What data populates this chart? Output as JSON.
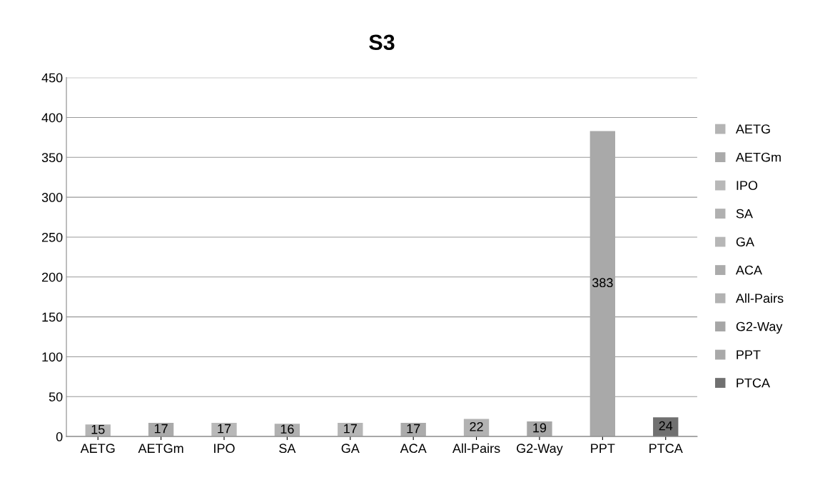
{
  "chart_data": {
    "type": "bar",
    "title": "S3",
    "categories": [
      "AETG",
      "AETGm",
      "IPO",
      "SA",
      "GA",
      "ACA",
      "All-Pairs",
      "G2-Way",
      "PPT",
      "PTCA"
    ],
    "series": [
      {
        "name": "AETG",
        "color": "#b4b4b4",
        "values": [
          15,
          null,
          null,
          null,
          null,
          null,
          null,
          null,
          null,
          null
        ]
      },
      {
        "name": "AETGm",
        "color": "#aaaaaa",
        "values": [
          null,
          17,
          null,
          null,
          null,
          null,
          null,
          null,
          null,
          null
        ]
      },
      {
        "name": "IPO",
        "color": "#b8b8b8",
        "values": [
          null,
          null,
          17,
          null,
          null,
          null,
          null,
          null,
          null,
          null
        ]
      },
      {
        "name": "SA",
        "color": "#b0b0b0",
        "values": [
          null,
          null,
          null,
          16,
          null,
          null,
          null,
          null,
          null,
          null
        ]
      },
      {
        "name": "GA",
        "color": "#b6b6b6",
        "values": [
          null,
          null,
          null,
          null,
          17,
          null,
          null,
          null,
          null,
          null
        ]
      },
      {
        "name": "ACA",
        "color": "#ababab",
        "values": [
          null,
          null,
          null,
          null,
          null,
          17,
          null,
          null,
          null,
          null
        ]
      },
      {
        "name": "All-Pairs",
        "color": "#b2b2b2",
        "values": [
          null,
          null,
          null,
          null,
          null,
          null,
          22,
          null,
          null,
          null
        ]
      },
      {
        "name": "G2-Way",
        "color": "#a6a6a6",
        "values": [
          null,
          null,
          null,
          null,
          null,
          null,
          null,
          19,
          null,
          null
        ]
      },
      {
        "name": "PPT",
        "color": "#a9a9a9",
        "values": [
          null,
          null,
          null,
          null,
          null,
          null,
          null,
          null,
          383,
          null
        ]
      },
      {
        "name": "PTCA",
        "color": "#707070",
        "values": [
          null,
          null,
          null,
          null,
          null,
          null,
          null,
          null,
          null,
          24
        ]
      }
    ],
    "stacked": true,
    "ylim": [
      0,
      450
    ],
    "yticks": [
      0,
      50,
      100,
      150,
      200,
      250,
      300,
      350,
      400,
      450
    ],
    "grid": "y",
    "legend": "right",
    "data_labels": true
  }
}
